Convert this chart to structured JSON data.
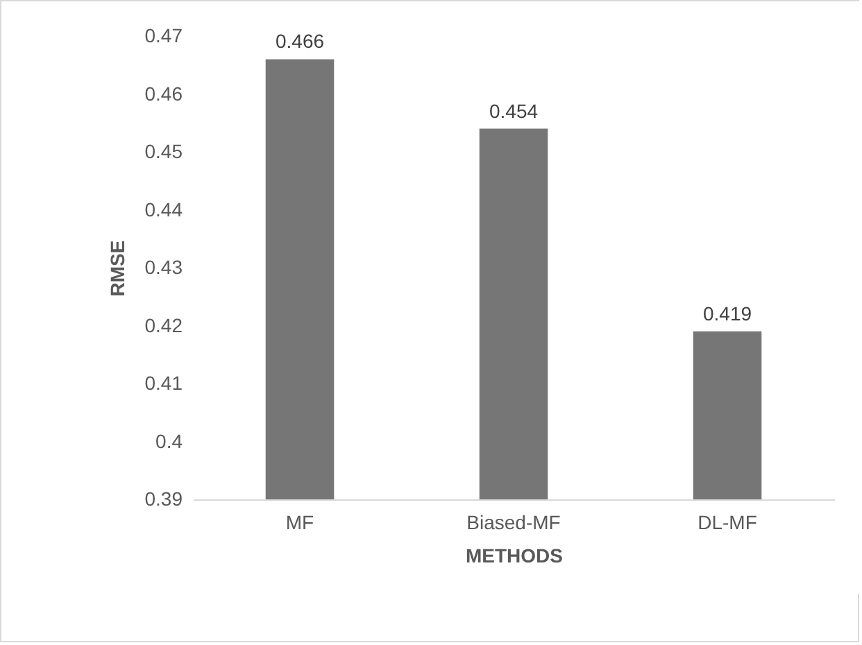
{
  "chart_data": {
    "type": "bar",
    "xlabel": "METHODS",
    "ylabel": "RMSE",
    "categories": [
      "MF",
      "Biased-MF",
      "DL-MF"
    ],
    "values": [
      0.466,
      0.454,
      0.419
    ],
    "color": "#767676",
    "ylim": [
      0.39,
      0.47
    ],
    "yticks": [
      0.39,
      0.4,
      0.41,
      0.42,
      0.43,
      0.44,
      0.45,
      0.46,
      0.47
    ],
    "grid": false,
    "data_labels": true
  }
}
